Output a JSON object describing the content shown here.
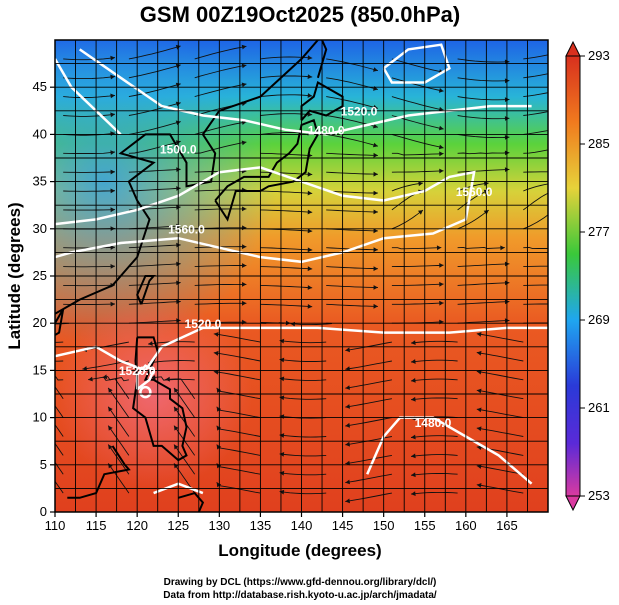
{
  "title": "GSM 00Z19Oct2025 (850.0hPa)",
  "xlabel": "Longitude (degrees)",
  "ylabel": "Latitude  (degrees)",
  "credits": [
    "Drawing by DCL (https://www.gfd-dennou.org/library/dcl/)",
    "Data from http://database.rish.kyoto-u.ac.jp/arch/jmadata/"
  ],
  "chart_data": {
    "type": "heatmap",
    "x_ticks": [
      "110",
      "115",
      "120",
      "125",
      "130",
      "135",
      "140",
      "145",
      "150",
      "155",
      "160",
      "165"
    ],
    "y_ticks": [
      "0",
      "5",
      "10",
      "15",
      "20",
      "25",
      "30",
      "35",
      "40",
      "45"
    ],
    "xlim": [
      110,
      170
    ],
    "ylim": [
      0,
      50
    ],
    "grid": true,
    "colorbar": {
      "ticks": [
        "293",
        "285",
        "277",
        "269",
        "261",
        "253"
      ],
      "range": [
        253,
        293
      ],
      "colors": [
        "#d93aa0",
        "#2a2ad8",
        "#1f9cf0",
        "#3ac83a",
        "#e6d23a",
        "#f07a1e",
        "#d8301e"
      ]
    },
    "contours": [
      {
        "label": "1480.0",
        "lon": 143,
        "lat": 40
      },
      {
        "label": "1520.0",
        "lon": 147,
        "lat": 42
      },
      {
        "label": "1500.0",
        "lon": 125,
        "lat": 38
      },
      {
        "label": "1560.0",
        "lon": 126,
        "lat": 29.5
      },
      {
        "label": "1560.0",
        "lon": 161,
        "lat": 33.5
      },
      {
        "label": "1520.0",
        "lon": 128,
        "lat": 19.5
      },
      {
        "label": "1480.0",
        "lon": 156,
        "lat": 9
      },
      {
        "label": "1520.0",
        "lon": 120,
        "lat": 14.5
      }
    ]
  }
}
